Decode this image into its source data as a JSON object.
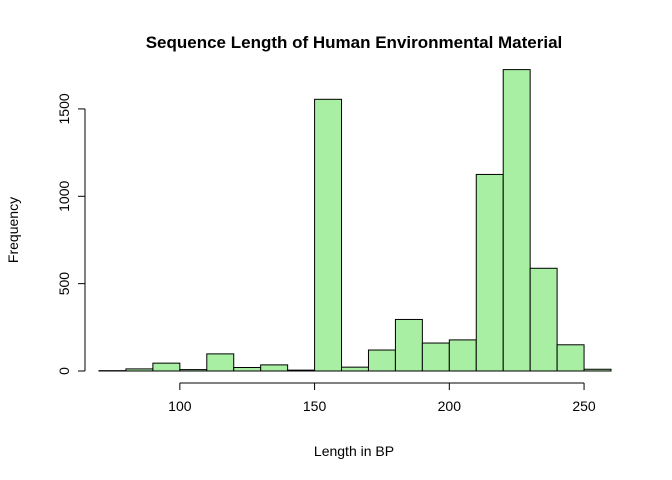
{
  "chart_data": {
    "type": "bar",
    "title": "Sequence Length of Human Environmental Material",
    "xlabel": "Length in BP",
    "ylabel": "Frequency",
    "bin_width": 10,
    "bins": [
      {
        "start": 70,
        "end": 80,
        "count": 2
      },
      {
        "start": 80,
        "end": 90,
        "count": 12
      },
      {
        "start": 90,
        "end": 100,
        "count": 45
      },
      {
        "start": 100,
        "end": 110,
        "count": 8
      },
      {
        "start": 110,
        "end": 120,
        "count": 98
      },
      {
        "start": 120,
        "end": 130,
        "count": 20
      },
      {
        "start": 130,
        "end": 140,
        "count": 35
      },
      {
        "start": 140,
        "end": 150,
        "count": 5
      },
      {
        "start": 150,
        "end": 160,
        "count": 1555
      },
      {
        "start": 160,
        "end": 170,
        "count": 22
      },
      {
        "start": 170,
        "end": 180,
        "count": 120
      },
      {
        "start": 180,
        "end": 190,
        "count": 295
      },
      {
        "start": 190,
        "end": 200,
        "count": 160
      },
      {
        "start": 200,
        "end": 210,
        "count": 178
      },
      {
        "start": 210,
        "end": 220,
        "count": 1125
      },
      {
        "start": 220,
        "end": 230,
        "count": 1725
      },
      {
        "start": 230,
        "end": 240,
        "count": 588
      },
      {
        "start": 240,
        "end": 250,
        "count": 150
      },
      {
        "start": 250,
        "end": 260,
        "count": 10
      }
    ],
    "xlim": [
      70,
      260
    ],
    "ylim": [
      0,
      1780
    ],
    "xticks": [
      100,
      150,
      200,
      250
    ],
    "yticks": [
      0,
      500,
      1000,
      1500
    ],
    "bar_color": "#a8eea3",
    "edge_color": "#000000",
    "grid": false,
    "legend": "none"
  }
}
